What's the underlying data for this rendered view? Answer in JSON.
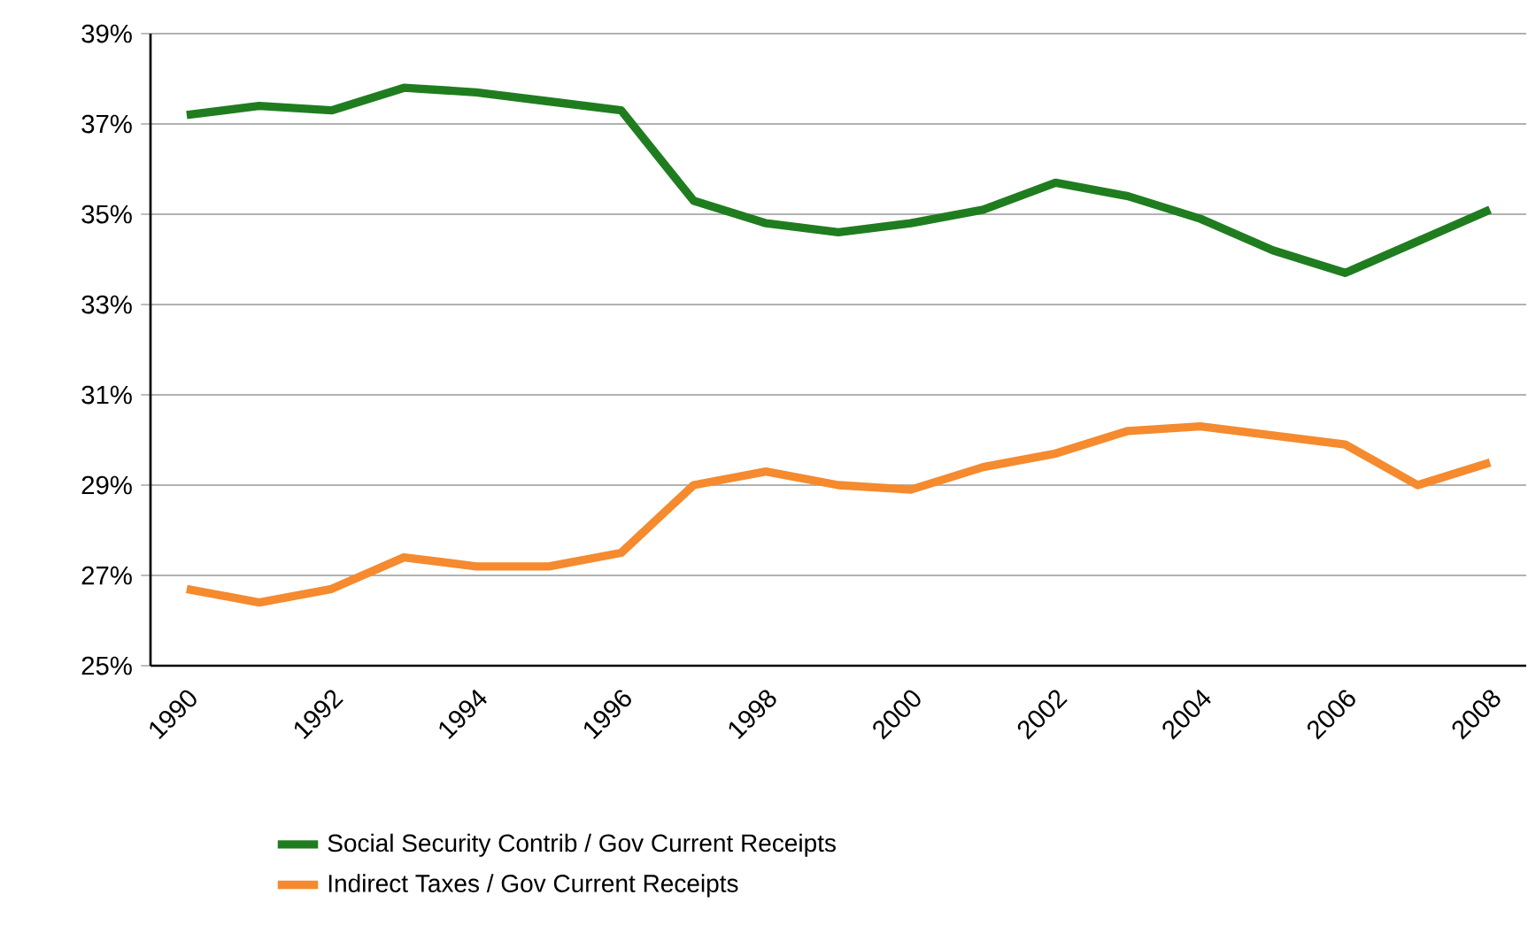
{
  "chart_data": {
    "type": "line",
    "categories": [
      "1990",
      null,
      "1992",
      null,
      "1994",
      null,
      "1996",
      null,
      "1998",
      null,
      "2000",
      null,
      "2002",
      null,
      "2004",
      null,
      "2006",
      null,
      "2008"
    ],
    "series": [
      {
        "name": "Social Security Contrib / Gov Current Receipts",
        "color": "#1f7d1f",
        "values": [
          37.2,
          37.4,
          37.3,
          37.8,
          37.7,
          37.5,
          37.3,
          35.3,
          34.8,
          34.6,
          34.8,
          35.1,
          35.7,
          35.4,
          34.9,
          34.2,
          33.7,
          34.4,
          35.1
        ]
      },
      {
        "name": "Indirect Taxes / Gov Current Receipts",
        "color": "#f58a2e",
        "values": [
          26.7,
          26.4,
          26.7,
          27.4,
          27.2,
          27.2,
          27.5,
          29.0,
          29.3,
          29.0,
          28.9,
          29.4,
          29.7,
          30.2,
          30.3,
          30.1,
          29.9,
          29.0,
          29.5
        ]
      }
    ],
    "ylim": [
      25,
      39
    ],
    "yticks": [
      {
        "value": 25,
        "label": "25%"
      },
      {
        "value": 27,
        "label": "27%"
      },
      {
        "value": 29,
        "label": "29%"
      },
      {
        "value": 31,
        "label": "31%"
      },
      {
        "value": 33,
        "label": "33%"
      },
      {
        "value": 35,
        "label": "35%"
      },
      {
        "value": 37,
        "label": "37%"
      },
      {
        "value": 39,
        "label": "39%"
      }
    ],
    "grid": "y",
    "legend": "bottom",
    "marker": "none",
    "line_style": "solid"
  }
}
